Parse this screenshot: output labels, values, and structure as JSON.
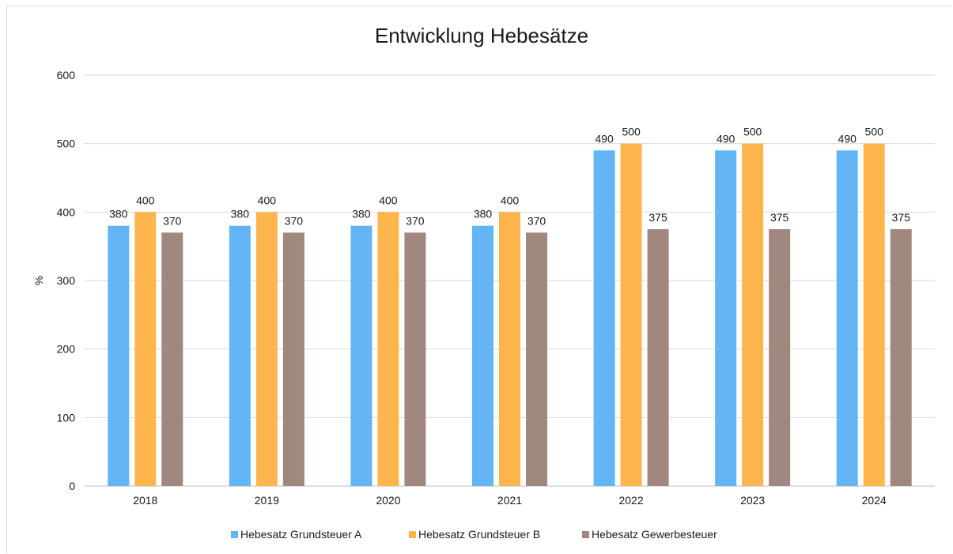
{
  "chart_data": {
    "type": "bar",
    "title": "Entwicklung Hebesätze",
    "xlabel": "",
    "ylabel": "%",
    "ylim": [
      0,
      600
    ],
    "yticks": [
      0,
      100,
      200,
      300,
      400,
      500,
      600
    ],
    "grid": true,
    "legend": "bottom",
    "categories": [
      "2018",
      "2019",
      "2020",
      "2021",
      "2022",
      "2023",
      "2024"
    ],
    "series": [
      {
        "name": "Hebesatz Grundsteuer A",
        "color": "#63b5f5",
        "values": [
          380,
          380,
          380,
          380,
          490,
          490,
          490
        ]
      },
      {
        "name": "Hebesatz Grundsteuer B",
        "color": "#ffb54d",
        "values": [
          400,
          400,
          400,
          400,
          500,
          500,
          500
        ]
      },
      {
        "name": "Hebesatz Gewerbesteuer",
        "color": "#a1887f",
        "values": [
          370,
          370,
          370,
          370,
          375,
          375,
          375
        ]
      }
    ]
  }
}
